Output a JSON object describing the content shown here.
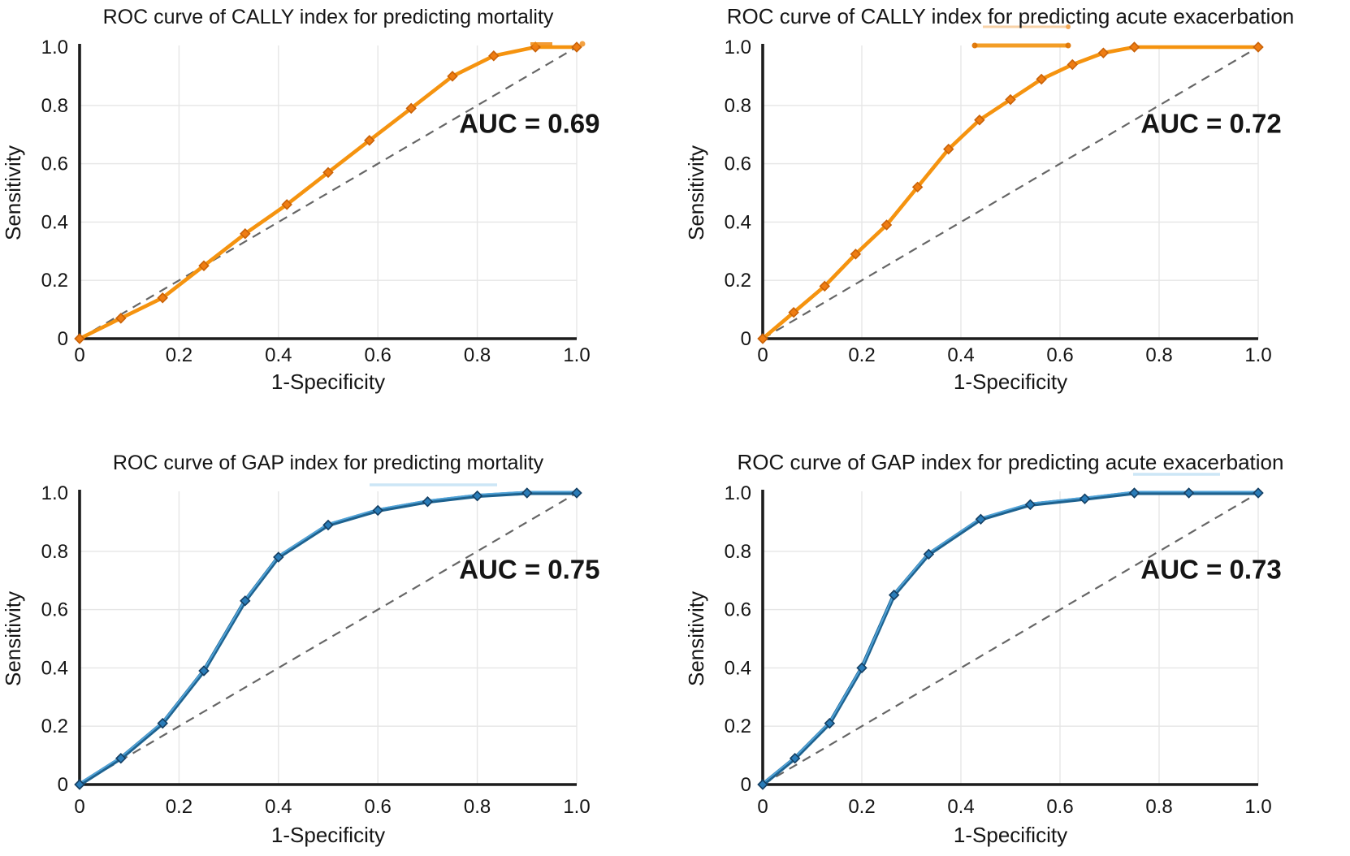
{
  "figure": {
    "description": "Panel of four ROC curves comparing CALLY index and GAP index for predicting mortality and acute exacerbation",
    "rows": 2,
    "cols": 2
  },
  "colors": {
    "cally_line": "#F5930F",
    "cally_marker_fill": "#EF7D12",
    "cally_marker_stroke": "#C96208",
    "gap_line": "#1E628F",
    "gap_line_highlight": "#55AADF",
    "gap_marker_fill": "#2A7CB8",
    "gap_marker_stroke": "#143F63",
    "diagonal_reference": "#666666",
    "axis": "#1C1C1C",
    "gridline": "#E6E6E6",
    "text": "#151515"
  },
  "chart_data": [
    {
      "type": "line",
      "title": "ROC curve of CALLY index for predicting mortality",
      "xlabel": "1-Specificity",
      "ylabel": "Sensitivity",
      "auc": 0.69,
      "auc_label": "AUC = 0.69",
      "series_color_key": "cally",
      "xlim": [
        0,
        1
      ],
      "ylim": [
        0,
        1
      ],
      "xtick_labels": [
        "0",
        "0.2",
        "0.4",
        "0.6",
        "0.8",
        "1.0"
      ],
      "ytick_labels": [
        "0",
        "0.2",
        "0.4",
        "0.6",
        "0.8",
        "1.0"
      ],
      "xticks": [
        0,
        0.2,
        0.4,
        0.6,
        0.8,
        1.0
      ],
      "yticks": [
        0,
        0.2,
        0.4,
        0.6,
        0.8,
        1.0
      ],
      "grid": true,
      "legend": "none",
      "reference_line": {
        "type": "diagonal",
        "style": "dashed"
      },
      "series": [
        {
          "name": "CALLY index",
          "x": [
            0,
            0.083,
            0.167,
            0.25,
            0.333,
            0.417,
            0.5,
            0.583,
            0.667,
            0.75,
            0.833,
            0.917,
            1.0
          ],
          "y": [
            0,
            0.07,
            0.14,
            0.25,
            0.36,
            0.46,
            0.57,
            0.68,
            0.79,
            0.9,
            0.97,
            1.0,
            1.0
          ]
        }
      ]
    },
    {
      "type": "line",
      "title": "ROC curve of CALLY index for predicting acute exacerbation",
      "xlabel": "1-Specificity",
      "ylabel": "Sensitivity",
      "auc": 0.72,
      "auc_label": "AUC = 0.72",
      "series_color_key": "cally",
      "xlim": [
        0,
        1
      ],
      "ylim": [
        0,
        1
      ],
      "xtick_labels": [
        "0",
        "0.2",
        "0.4",
        "0.6",
        "0.8",
        "1.0"
      ],
      "ytick_labels": [
        "0",
        "0.2",
        "0.4",
        "0.6",
        "0.8",
        "1.0"
      ],
      "xticks": [
        0,
        0.2,
        0.4,
        0.6,
        0.8,
        1.0
      ],
      "yticks": [
        0,
        0.2,
        0.4,
        0.6,
        0.8,
        1.0
      ],
      "grid": true,
      "legend": "none",
      "reference_line": {
        "type": "diagonal",
        "style": "dashed"
      },
      "series": [
        {
          "name": "CALLY index",
          "x": [
            0,
            0.0625,
            0.125,
            0.1875,
            0.25,
            0.3125,
            0.375,
            0.4375,
            0.5,
            0.5625,
            0.625,
            0.6875,
            0.75,
            1.0
          ],
          "y": [
            0,
            0.09,
            0.18,
            0.29,
            0.39,
            0.52,
            0.65,
            0.75,
            0.82,
            0.89,
            0.94,
            0.98,
            1.0,
            1.0
          ]
        }
      ]
    },
    {
      "type": "line",
      "title": "ROC curve of GAP index for predicting mortality",
      "xlabel": "1-Specificity",
      "ylabel": "Sensitivity",
      "auc": 0.75,
      "auc_label": "AUC = 0.75",
      "series_color_key": "gap",
      "xlim": [
        0,
        1
      ],
      "ylim": [
        0,
        1
      ],
      "xtick_labels": [
        "0",
        "0.2",
        "0.4",
        "0.6",
        "0.8",
        "1.0"
      ],
      "ytick_labels": [
        "0",
        "0.2",
        "0.4",
        "0.6",
        "0.8",
        "1.0"
      ],
      "xticks": [
        0,
        0.2,
        0.4,
        0.6,
        0.8,
        1.0
      ],
      "yticks": [
        0,
        0.2,
        0.4,
        0.6,
        0.8,
        1.0
      ],
      "grid": true,
      "legend": "none",
      "reference_line": {
        "type": "diagonal",
        "style": "dashed"
      },
      "series": [
        {
          "name": "GAP index",
          "x": [
            0,
            0.083,
            0.167,
            0.25,
            0.333,
            0.4,
            0.5,
            0.6,
            0.7,
            0.8,
            0.9,
            1.0
          ],
          "y": [
            0,
            0.09,
            0.21,
            0.39,
            0.63,
            0.78,
            0.89,
            0.94,
            0.97,
            0.99,
            1.0,
            1.0
          ]
        }
      ]
    },
    {
      "type": "line",
      "title": "ROC curve of GAP index for predicting acute exacerbation",
      "xlabel": "1-Specificity",
      "ylabel": "Sensitivity",
      "auc": 0.73,
      "auc_label": "AUC = 0.73",
      "series_color_key": "gap",
      "xlim": [
        0,
        1
      ],
      "ylim": [
        0,
        1
      ],
      "xtick_labels": [
        "0",
        "0.2",
        "0.4",
        "0.6",
        "0.8",
        "1.0"
      ],
      "ytick_labels": [
        "0",
        "0.2",
        "0.4",
        "0.6",
        "0.8",
        "1.0"
      ],
      "xticks": [
        0,
        0.2,
        0.4,
        0.6,
        0.8,
        1.0
      ],
      "yticks": [
        0,
        0.2,
        0.4,
        0.6,
        0.8,
        1.0
      ],
      "grid": true,
      "legend": "none",
      "reference_line": {
        "type": "diagonal",
        "style": "dashed"
      },
      "series": [
        {
          "name": "GAP index",
          "x": [
            0,
            0.065,
            0.135,
            0.2,
            0.265,
            0.335,
            0.44,
            0.54,
            0.65,
            0.75,
            0.86,
            1.0
          ],
          "y": [
            0,
            0.09,
            0.21,
            0.4,
            0.65,
            0.79,
            0.91,
            0.96,
            0.98,
            1.0,
            1.0,
            1.0
          ]
        }
      ]
    }
  ]
}
